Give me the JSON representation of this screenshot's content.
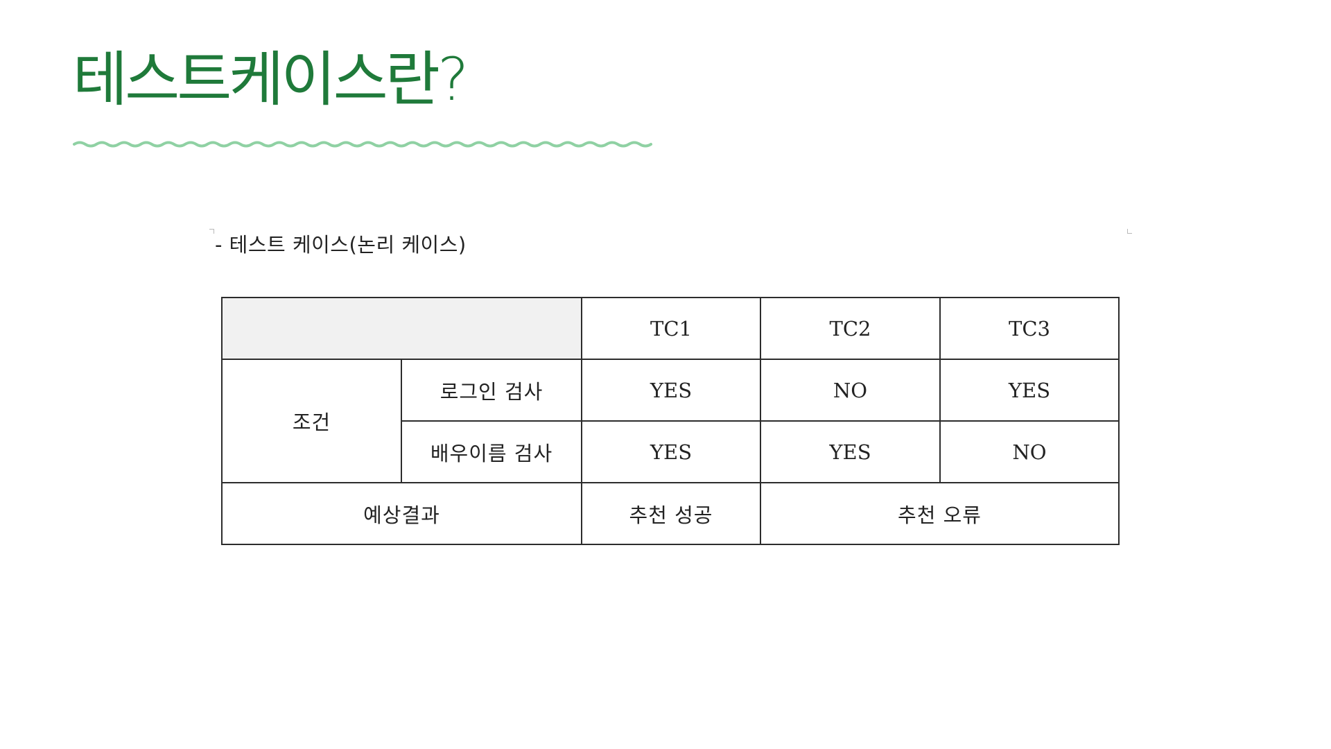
{
  "slide": {
    "title": "테스트케이스란?",
    "accent_color": "#1f7a3a",
    "wave_color": "#8fd1a3"
  },
  "document": {
    "heading": "- 테스트 케이스(논리 케이스)"
  },
  "table": {
    "header": [
      "TC1",
      "TC2",
      "TC3"
    ],
    "conditions_label": "조건",
    "rows": [
      {
        "label": "로그인 검사",
        "values": [
          "YES",
          "NO",
          "YES"
        ]
      },
      {
        "label": "배우이름 검사",
        "values": [
          "YES",
          "YES",
          "NO"
        ]
      }
    ],
    "expected_label": "예상결과",
    "expected": {
      "tc1": "추천 성공",
      "tc2_tc3": "추천 오류"
    }
  }
}
